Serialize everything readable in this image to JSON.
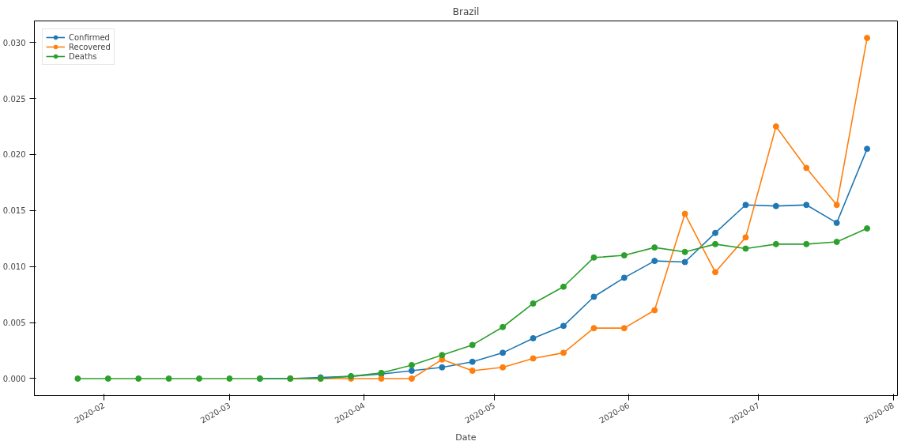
{
  "chart_data": {
    "type": "line",
    "title": "Brazil",
    "xlabel": "Date",
    "x": [
      "2020-01-26",
      "2020-02-02",
      "2020-02-09",
      "2020-02-16",
      "2020-02-23",
      "2020-03-01",
      "2020-03-08",
      "2020-03-15",
      "2020-03-22",
      "2020-03-29",
      "2020-04-05",
      "2020-04-12",
      "2020-04-19",
      "2020-04-26",
      "2020-05-03",
      "2020-05-10",
      "2020-05-17",
      "2020-05-24",
      "2020-05-31",
      "2020-06-07",
      "2020-06-14",
      "2020-06-21",
      "2020-06-28",
      "2020-07-05",
      "2020-07-12",
      "2020-07-19",
      "2020-07-26"
    ],
    "series": [
      {
        "name": "Confirmed",
        "color": "#1f77b4",
        "values": [
          null,
          null,
          null,
          null,
          null,
          null,
          0,
          0,
          0.0001,
          0.0002,
          0.0004,
          0.0007,
          0.001,
          0.0015,
          0.0023,
          0.0036,
          0.0047,
          0.0073,
          0.009,
          0.0105,
          0.0104,
          0.013,
          0.0155,
          0.0154,
          0.0155,
          0.0139,
          0.0205
        ]
      },
      {
        "name": "Recovered",
        "color": "#ff7f0e",
        "values": [
          null,
          null,
          null,
          null,
          null,
          null,
          null,
          0,
          0,
          0,
          0,
          0,
          0.0017,
          0.0007,
          0.001,
          0.0018,
          0.0023,
          0.0045,
          0.0045,
          0.0061,
          0.0147,
          0.0095,
          0.0126,
          0.0225,
          0.0188,
          0.0155,
          0.0304
        ]
      },
      {
        "name": "Deaths",
        "color": "#2ca02c",
        "values": [
          0,
          0,
          0,
          0,
          0,
          0,
          0,
          0,
          0,
          0.0002,
          0.0005,
          0.0012,
          0.0021,
          0.003,
          0.0046,
          0.0067,
          0.0082,
          0.0108,
          0.011,
          0.0117,
          0.0113,
          0.012,
          0.0116,
          0.012,
          0.012,
          0.0122,
          0.0134
        ]
      }
    ],
    "xlim": [
      "2020-01-16",
      "2020-08-02"
    ],
    "xticks": [
      {
        "value": "2020-02-01",
        "label": "2020-02"
      },
      {
        "value": "2020-03-01",
        "label": "2020-03"
      },
      {
        "value": "2020-04-01",
        "label": "2020-04"
      },
      {
        "value": "2020-05-01",
        "label": "2020-05"
      },
      {
        "value": "2020-06-01",
        "label": "2020-06"
      },
      {
        "value": "2020-07-01",
        "label": "2020-07"
      },
      {
        "value": "2020-08-01",
        "label": "2020-08"
      }
    ],
    "ylim": [
      -0.00152,
      0.03192
    ],
    "yticks": [
      {
        "value": 0,
        "label": "0.000"
      },
      {
        "value": 0.005,
        "label": "0.005"
      },
      {
        "value": 0.01,
        "label": "0.010"
      },
      {
        "value": 0.015,
        "label": "0.015"
      },
      {
        "value": 0.02,
        "label": "0.020"
      },
      {
        "value": 0.025,
        "label": "0.025"
      },
      {
        "value": 0.03,
        "label": "0.030"
      }
    ],
    "legend": "top left",
    "marker": "circle",
    "line_style": "solid",
    "grid": false
  }
}
